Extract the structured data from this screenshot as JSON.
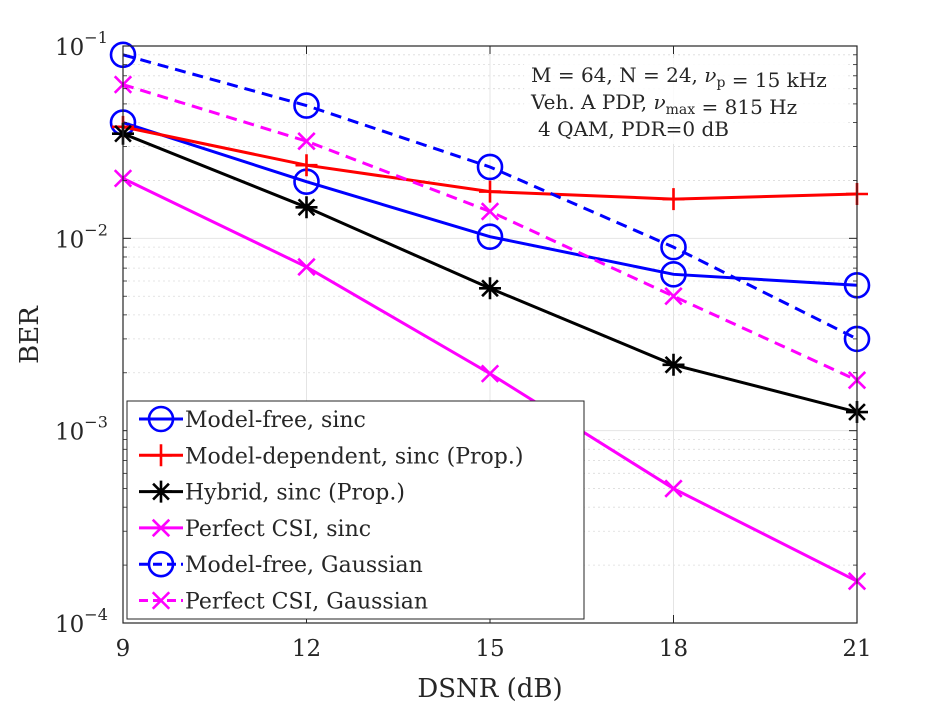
{
  "chart_data": {
    "type": "line",
    "xlabel": "DSNR (dB)",
    "ylabel": "BER",
    "xlim": [
      9,
      21
    ],
    "ylim": [
      0.0001,
      0.1
    ],
    "yscale": "log",
    "xticks": [
      "9",
      "12",
      "15",
      "18",
      "21"
    ],
    "yticks": [
      {
        "base": "10",
        "exp": "−4",
        "value": 0.0001
      },
      {
        "base": "10",
        "exp": "−3",
        "value": 0.001
      },
      {
        "base": "10",
        "exp": "−2",
        "value": 0.01
      },
      {
        "base": "10",
        "exp": "−1",
        "value": 0.1
      }
    ],
    "grid": true,
    "minor_grid": true,
    "legend_position": "bottom-left",
    "annotation": [
      "M = 64, N = 24, ν_p = 15 kHz",
      "Veh. A PDP, ν_max = 815 Hz",
      "4 QAM, PDR=0 dB"
    ],
    "x": [
      9,
      12,
      15,
      18,
      21
    ],
    "series": [
      {
        "name": "Model-free, sinc",
        "color": "#0000ff",
        "dash": "solid",
        "marker": "circle",
        "values": [
          0.04,
          0.0197,
          0.0102,
          0.0065,
          0.0057
        ]
      },
      {
        "name": "Model-dependent, sinc (Prop.)",
        "color": "#ff0000",
        "dash": "solid",
        "marker": "plus",
        "values": [
          0.038,
          0.024,
          0.0175,
          0.016,
          0.017
        ]
      },
      {
        "name": "Hybrid, sinc (Prop.)",
        "color": "#000000",
        "dash": "solid",
        "marker": "asterisk",
        "values": [
          0.035,
          0.0145,
          0.0055,
          0.0022,
          0.00125
        ]
      },
      {
        "name": "Perfect CSI, sinc",
        "color": "#ff00ff",
        "dash": "solid",
        "marker": "x",
        "values": [
          0.0205,
          0.0071,
          0.00198,
          0.0005,
          0.000165
        ]
      },
      {
        "name": "Model-free, Gaussian",
        "color": "#0000ff",
        "dash": "dashed",
        "marker": "circle",
        "values": [
          0.09,
          0.049,
          0.0235,
          0.009,
          0.003
        ]
      },
      {
        "name": "Perfect CSI, Gaussian",
        "color": "#ff00ff",
        "dash": "dashed",
        "marker": "x",
        "values": [
          0.063,
          0.032,
          0.0138,
          0.005,
          0.00183
        ]
      }
    ]
  }
}
